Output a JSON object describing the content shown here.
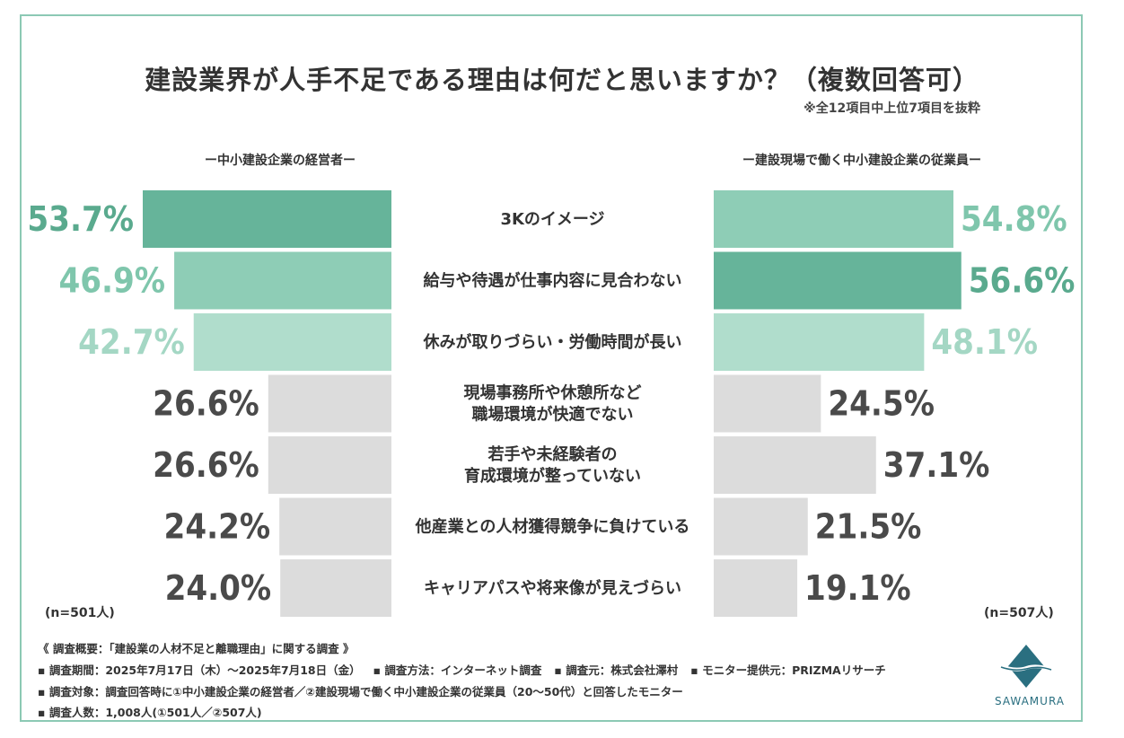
{
  "chart_data": {
    "type": "bar",
    "title": "建設業界が人手不足である理由は何だと思いますか？（複数回答可）",
    "note": "※全12項目中上位7項目を抜粋",
    "categories": [
      [
        "3Kのイメージ"
      ],
      [
        "給与や待遇が仕事内容に見合わない"
      ],
      [
        "休みが取りづらい・労働時間が長い"
      ],
      [
        "現場事務所や休憩所など",
        "職場環境が快適でない"
      ],
      [
        "若手や未経験者の",
        "育成環境が整っていない"
      ],
      [
        "他産業との人材獲得競争に負けている"
      ],
      [
        "キャリアパスや将来像が見えづらい"
      ]
    ],
    "series": [
      {
        "name": "ー中小建設企業の経営者ー",
        "sample": "(n=501人)",
        "values": [
          53.7,
          46.9,
          42.7,
          26.6,
          26.6,
          24.2,
          24.0
        ],
        "labels": [
          "53.7%",
          "46.9%",
          "42.7%",
          "26.6%",
          "26.6%",
          "24.2%",
          "24.0%"
        ]
      },
      {
        "name": "ー建設現場で働く中小建設企業の従業員ー",
        "sample": "(n=507人)",
        "values": [
          54.8,
          56.6,
          48.1,
          24.5,
          37.1,
          21.5,
          19.1
        ],
        "labels": [
          "54.8%",
          "56.6%",
          "48.1%",
          "24.5%",
          "37.1%",
          "21.5%",
          "19.1%"
        ]
      }
    ],
    "colors": {
      "rank1": "#66b49a",
      "rank2": "#8ecdb6",
      "rank3": "#b0ddcc",
      "other": "#dcdcdc",
      "rank1_text": "#5aaa8e",
      "rank2_text": "#7fc6ac",
      "rank3_text": "#a4d7c4",
      "other_text": "#4a4a4a",
      "frame": "#8cc9b4"
    },
    "rank_order": {
      "left": [
        1,
        2,
        3,
        4,
        4,
        6,
        7
      ],
      "right": [
        2,
        1,
        3,
        5,
        4,
        6,
        7
      ]
    }
  },
  "footer": {
    "summary": "《 調査概要：「建設業の人材不足と離職理由」に関する調査 》",
    "period": "▪ 調査期間：2025年7月17日（木）〜2025年7月18日（金）",
    "method": "▪ 調査方法：インターネット調査",
    "source": "▪ 調査元：株式会社澤村",
    "monitor": "▪ モニター提供元：PRIZMAリサーチ",
    "target": "▪ 調査対象：調査回答時に①中小建設企業の経営者／②建設現場で働く中小建設企業の従業員（20〜50代）と回答したモニター",
    "count": "▪ 調査人数：1,008人(①501人／②507人)"
  },
  "logo": {
    "text": "SAWAMURA",
    "icon": "sawamura-logo-icon"
  }
}
